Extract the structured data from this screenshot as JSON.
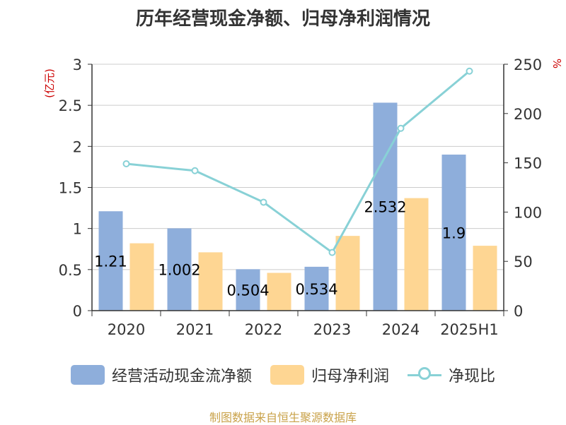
{
  "title": "历年经营现金净额、归母净利润情况",
  "source": "制图数据来自恒生聚源数据库",
  "chart_data": {
    "type": "bar",
    "categories": [
      "2020",
      "2021",
      "2022",
      "2023",
      "2024",
      "2025H1"
    ],
    "series": [
      {
        "name": "经营活动现金流净额",
        "kind": "bar",
        "axis": "left",
        "color": "#8eaedb",
        "values": [
          1.21,
          1.002,
          0.504,
          0.534,
          2.532,
          1.9
        ],
        "labels": [
          "1.21",
          "1.002",
          "0.504",
          "0.534",
          "2.532",
          "1.9"
        ]
      },
      {
        "name": "归母净利润",
        "kind": "bar",
        "axis": "left",
        "color": "#fed693",
        "values": [
          0.82,
          0.71,
          0.46,
          0.91,
          1.37,
          0.79
        ]
      },
      {
        "name": "净现比",
        "kind": "line",
        "axis": "right",
        "color": "#88d1d6",
        "values": [
          149,
          142,
          110,
          59,
          185,
          243
        ]
      }
    ],
    "y_left": {
      "label": "(亿元)",
      "min": 0,
      "max": 3,
      "ticks": [
        "0",
        "0.5",
        "1",
        "1.5",
        "2",
        "2.5",
        "3"
      ]
    },
    "y_right": {
      "label": "%",
      "min": 0,
      "max": 250,
      "ticks": [
        "0",
        "50",
        "100",
        "150",
        "200",
        "250"
      ]
    },
    "grid": true,
    "legend_position": "bottom"
  }
}
